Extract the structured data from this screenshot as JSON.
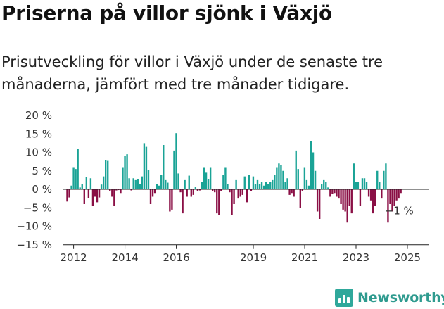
{
  "header": {
    "title": "Priserna på villor sjönk i Växjö",
    "subtitle": "Prisutveckling för villor i Växjö under de senaste tre månaderna, jämfört med tre månader tidigare."
  },
  "brand": {
    "name": "Newsworthy",
    "icon": "bar-chart-logo-icon"
  },
  "chart_data": {
    "type": "bar",
    "unit": "%",
    "x_start": 2011.75,
    "x_step": 0.0833,
    "values": [
      -3.3,
      -2.2,
      1,
      6,
      5.5,
      11,
      0.5,
      1.5,
      -4,
      3.3,
      -2.3,
      3,
      -4.5,
      -2,
      -3.5,
      -2.2,
      1.3,
      3.5,
      8,
      7.7,
      -0.5,
      -2,
      -4.5,
      -0.3,
      -0.2,
      -1,
      6,
      9,
      9.5,
      3,
      -0.3,
      3,
      2.5,
      2.7,
      1.5,
      3.5,
      12.5,
      11.5,
      5.2,
      -4,
      -2,
      -1,
      1.5,
      1,
      4,
      12,
      2.5,
      1.8,
      -6,
      -5.5,
      10.5,
      15.2,
      4.3,
      -0.8,
      -6.5,
      2.5,
      -2,
      3.7,
      -2,
      -1.5,
      0.7,
      -0.5,
      -0.3,
      2,
      6,
      4.5,
      2.7,
      6,
      -0.5,
      -0.8,
      -6.5,
      -7,
      -0.5,
      4,
      6,
      1.5,
      -0.8,
      -7,
      -4,
      2.5,
      -2.5,
      -2,
      -1.5,
      3.5,
      -3.5,
      4,
      -0.5,
      3.5,
      1.5,
      2.5,
      1.5,
      2,
      1,
      2,
      1.5,
      2,
      2.5,
      4,
      6,
      7,
      6.5,
      5,
      2,
      3,
      -1.5,
      -1,
      -2,
      10.5,
      5.5,
      -5,
      -0.5,
      6,
      2.5,
      1,
      13,
      10,
      5,
      -6,
      -8,
      1.5,
      2.5,
      2,
      0.5,
      -2,
      -1.3,
      -1,
      -2,
      -2.5,
      -4,
      -5.5,
      -6,
      -9,
      -4.5,
      -6.5,
      7,
      2,
      2,
      -4.5,
      3,
      3,
      2,
      -2,
      -3,
      -6.5,
      -4.5,
      5,
      2,
      -2.5,
      5,
      7,
      -9,
      -4,
      -6,
      -4.5,
      -3,
      -2.5,
      -1
    ],
    "ylim": [
      -15,
      20
    ],
    "y_ticks": [
      20,
      15,
      10,
      5,
      0,
      -5,
      -10,
      -15
    ],
    "y_tick_labels": [
      "20 %",
      "15 %",
      "10 %",
      "5 %",
      "0 %",
      "−5 %",
      "−10 %",
      "−15 %"
    ],
    "x_ticks": [
      2012,
      2014,
      2016,
      2019,
      2021,
      2023,
      2025
    ],
    "x_tick_labels": [
      "2012",
      "2014",
      "2016",
      "2019",
      "2021",
      "2023",
      "2025"
    ],
    "xlim": [
      2011.6,
      2025.85
    ],
    "colors": {
      "positive": "#1aa396",
      "negative": "#8a0f45",
      "axis": "#222222",
      "grid": "#dddddd"
    },
    "annotation": {
      "text": "−1 %"
    },
    "grid": false,
    "legend": "none"
  }
}
